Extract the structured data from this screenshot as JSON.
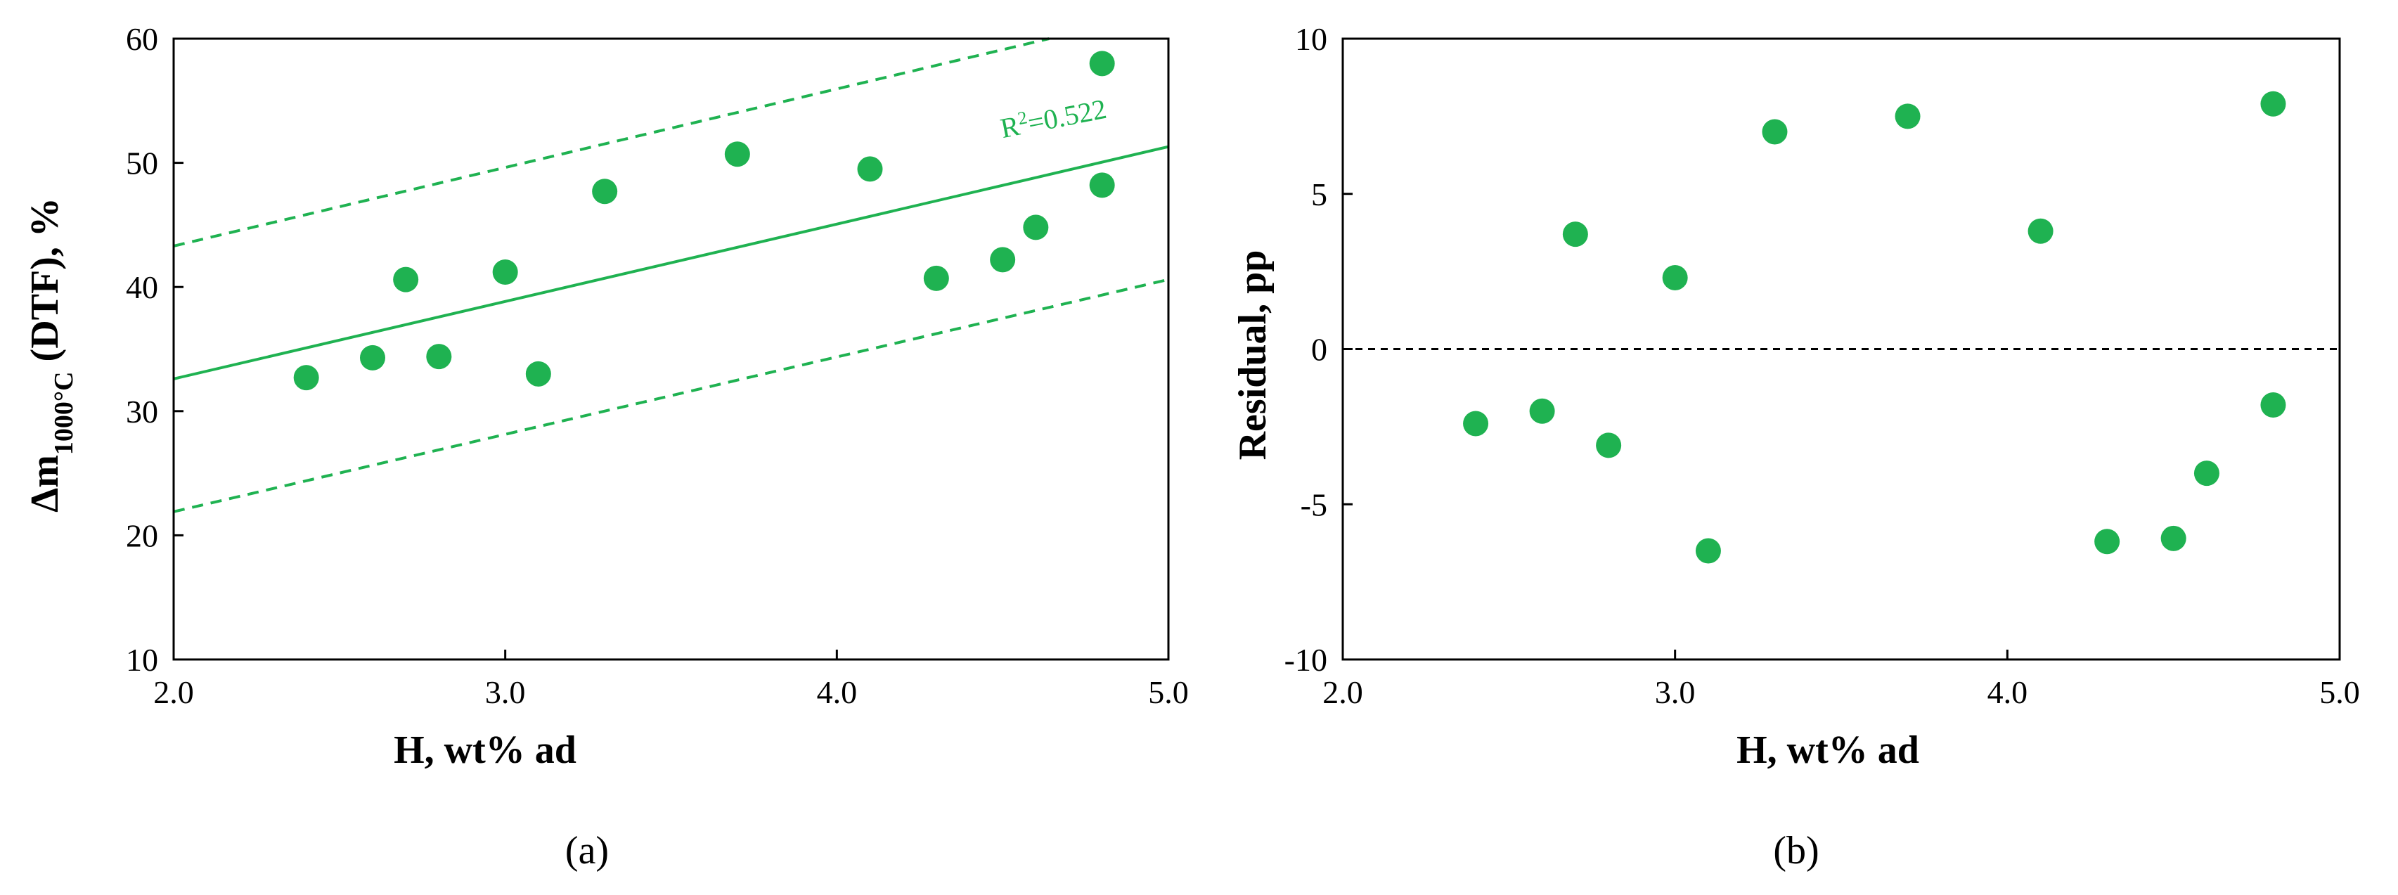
{
  "colors": {
    "series": "#1fb251",
    "axis": "#000000",
    "zero_line": "#000000"
  },
  "chart_data": [
    {
      "type": "scatter",
      "panel_label": "(a)",
      "xlabel": "H, wt% ad",
      "ylabel_main": "Δm",
      "ylabel_sub": "1000°C",
      "ylabel_rest": " (DTF), %",
      "xlim": [
        2.0,
        5.0
      ],
      "ylim": [
        10,
        60
      ],
      "xticks": [
        2.0,
        3.0,
        4.0,
        5.0
      ],
      "xtick_labels": [
        "2.0",
        "3.0",
        "4.0",
        "5.0"
      ],
      "yticks": [
        10,
        20,
        30,
        40,
        50,
        60
      ],
      "ytick_labels": [
        "10",
        "20",
        "30",
        "40",
        "50",
        "60"
      ],
      "grid": false,
      "x": [
        2.4,
        2.6,
        2.7,
        2.8,
        3.0,
        3.1,
        3.3,
        3.7,
        4.1,
        4.3,
        4.5,
        4.6,
        4.8,
        4.8
      ],
      "y": [
        32.7,
        34.3,
        40.6,
        34.4,
        41.2,
        33.0,
        47.7,
        50.7,
        49.5,
        40.7,
        42.2,
        44.8,
        48.2,
        58.0
      ],
      "fit": {
        "x": [
          2.0,
          5.0
        ],
        "y": [
          32.6,
          51.3
        ]
      },
      "upper_band": {
        "x": [
          2.0,
          4.64
        ],
        "y": [
          43.3,
          60.0
        ]
      },
      "lower_band": {
        "x": [
          2.0,
          5.0
        ],
        "y": [
          21.9,
          40.6
        ]
      },
      "annotation": {
        "text": "R",
        "sup": "2",
        "value": "=0.522",
        "x": 4.5,
        "y": 52.0
      }
    },
    {
      "type": "scatter",
      "panel_label": "(b)",
      "xlabel": "H, wt% ad",
      "ylabel": "Residual, pp",
      "xlim": [
        2.0,
        5.0
      ],
      "ylim": [
        -10,
        10
      ],
      "xticks": [
        2.0,
        3.0,
        4.0,
        5.0
      ],
      "xtick_labels": [
        "2.0",
        "3.0",
        "4.0",
        "5.0"
      ],
      "yticks": [
        -10,
        -5,
        0,
        5,
        10
      ],
      "ytick_labels": [
        "-10",
        "-5",
        "0",
        "5",
        "10"
      ],
      "grid": false,
      "x": [
        2.4,
        2.6,
        2.7,
        2.8,
        3.0,
        3.1,
        3.3,
        3.7,
        4.1,
        4.3,
        4.5,
        4.6,
        4.8,
        4.8
      ],
      "y": [
        -2.4,
        -2.0,
        3.7,
        -3.1,
        2.3,
        -6.5,
        7.0,
        7.5,
        3.8,
        -6.2,
        -6.1,
        -4.0,
        -1.8,
        7.9
      ],
      "zero_line": 0
    }
  ]
}
